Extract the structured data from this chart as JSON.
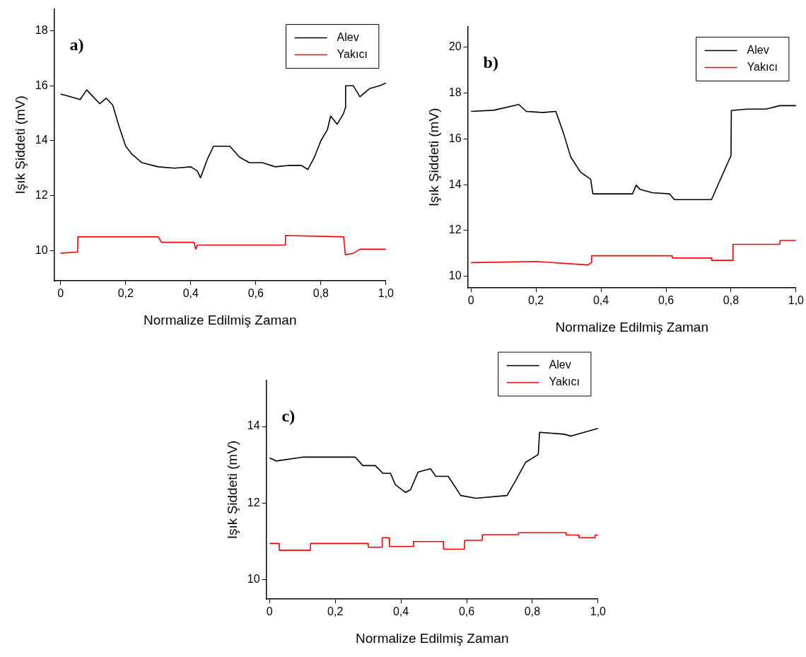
{
  "chart_data": [
    {
      "type": "line",
      "xlabel": "Normalize Edilmiş Zaman",
      "ylabel": "Işık Şiddeti (mV)",
      "annotations": [
        "a)"
      ],
      "legend": "top right",
      "xlim": [
        -0.02,
        1.0
      ],
      "xticks": [
        {
          "value": 0,
          "label": "0"
        },
        {
          "value": 0.2,
          "label": "0,2"
        },
        {
          "value": 0.4,
          "label": "0,4"
        },
        {
          "value": 0.6,
          "label": "0,6"
        },
        {
          "value": 0.8,
          "label": "0,8"
        },
        {
          "value": 1.0,
          "label": "1,0"
        }
      ],
      "ylim": [
        8.9,
        18.8
      ],
      "yticks": [
        10,
        12,
        14,
        16,
        18
      ],
      "series": [
        {
          "name": "Alev",
          "color": "#000000",
          "x": [
            0,
            0.03,
            0.06,
            0.08,
            0.1,
            0.12,
            0.14,
            0.16,
            0.18,
            0.2,
            0.22,
            0.25,
            0.3,
            0.35,
            0.4,
            0.42,
            0.43,
            0.45,
            0.47,
            0.5,
            0.52,
            0.55,
            0.58,
            0.62,
            0.66,
            0.7,
            0.74,
            0.76,
            0.78,
            0.8,
            0.82,
            0.83,
            0.85,
            0.87,
            0.875,
            0.876,
            0.9,
            0.92,
            0.95,
            0.98,
            1.0
          ],
          "values": [
            15.7,
            15.6,
            15.5,
            15.85,
            15.6,
            15.35,
            15.55,
            15.3,
            14.5,
            13.8,
            13.5,
            13.2,
            13.05,
            13.0,
            13.05,
            12.9,
            12.65,
            13.3,
            13.8,
            13.8,
            13.8,
            13.4,
            13.2,
            13.2,
            13.05,
            13.1,
            13.1,
            12.95,
            13.4,
            14.0,
            14.4,
            14.9,
            14.6,
            15.0,
            15.2,
            16.0,
            16.0,
            15.6,
            15.9,
            16.0,
            16.1
          ]
        },
        {
          "name": "Yakıcı",
          "color": "#ff0000",
          "x": [
            0,
            0.052,
            0.053,
            0.3,
            0.31,
            0.41,
            0.415,
            0.42,
            0.69,
            0.691,
            0.87,
            0.875,
            0.9,
            0.92,
            1.0
          ],
          "values": [
            9.9,
            9.95,
            10.5,
            10.5,
            10.3,
            10.3,
            10.05,
            10.2,
            10.2,
            10.55,
            10.5,
            9.85,
            9.9,
            10.05,
            10.05
          ]
        }
      ]
    },
    {
      "type": "line",
      "xlabel": "Normalize Edilmiş Zaman",
      "ylabel": "Işık Şiddeti (mV)",
      "annotations": [
        "b)"
      ],
      "legend": "top right",
      "xlim": [
        -0.01,
        1.0
      ],
      "xticks": [
        0,
        {
          "value": 0.2,
          "label": "0,2"
        },
        {
          "value": 0.4,
          "label": "0,4"
        },
        {
          "value": 0.6,
          "label": "0,6"
        },
        {
          "value": 0.8,
          "label": "0,8"
        },
        {
          "value": 1.0,
          "label": "1,0"
        }
      ],
      "ylim": [
        9.5,
        20.9
      ],
      "yticks": [
        10,
        12,
        14,
        16,
        18,
        20
      ],
      "series": [
        {
          "name": "Alev",
          "color": "#000000",
          "x": [
            0,
            0.07,
            0.147,
            0.17,
            0.22,
            0.261,
            0.284,
            0.307,
            0.337,
            0.368,
            0.375,
            0.45,
            0.497,
            0.508,
            0.52,
            0.558,
            0.611,
            0.626,
            0.74,
            0.771,
            0.8,
            0.801,
            0.85,
            0.908,
            0.95,
            1.0
          ],
          "values": [
            17.2,
            17.25,
            17.5,
            17.2,
            17.15,
            17.2,
            16.27,
            15.2,
            14.55,
            14.24,
            13.6,
            13.6,
            13.6,
            13.98,
            13.8,
            13.65,
            13.6,
            13.35,
            13.35,
            14.35,
            15.27,
            17.24,
            17.3,
            17.3,
            17.45,
            17.45
          ]
        },
        {
          "name": "Yakıcı",
          "color": "#ff0000",
          "x": [
            0,
            0.2,
            0.36,
            0.37,
            0.371,
            0.619,
            0.62,
            0.74,
            0.741,
            0.805,
            0.806,
            0.95,
            0.951,
            1.0
          ],
          "values": [
            10.6,
            10.65,
            10.5,
            10.6,
            10.9,
            10.9,
            10.8,
            10.8,
            10.7,
            10.7,
            11.4,
            11.4,
            11.57,
            11.57
          ]
        }
      ]
    },
    {
      "type": "line",
      "xlabel": "Normalize Edilmiş Zaman",
      "ylabel": "Işık Şiddeti (mV)",
      "annotations": [
        "c)"
      ],
      "legend": "top right",
      "xlim": [
        -0.01,
        1.0
      ],
      "xticks": [
        0,
        {
          "value": 0.2,
          "label": "0,2"
        },
        {
          "value": 0.4,
          "label": "0,4"
        },
        {
          "value": 0.6,
          "label": "0,6"
        },
        {
          "value": 0.8,
          "label": "0,8"
        },
        {
          "value": 1.0,
          "label": "1,0"
        }
      ],
      "ylim": [
        9.5,
        15.2
      ],
      "yticks": [
        10,
        12,
        14
      ],
      "series": [
        {
          "name": "Alev",
          "color": "#000000",
          "x": [
            0,
            0.02,
            0.1,
            0.261,
            0.284,
            0.322,
            0.345,
            0.368,
            0.383,
            0.414,
            0.429,
            0.452,
            0.49,
            0.506,
            0.544,
            0.582,
            0.628,
            0.723,
            0.75,
            0.78,
            0.818,
            0.822,
            0.895,
            0.918,
            1.0
          ],
          "values": [
            13.18,
            13.1,
            13.2,
            13.2,
            12.98,
            12.98,
            12.78,
            12.78,
            12.48,
            12.28,
            12.35,
            12.81,
            12.9,
            12.7,
            12.7,
            12.2,
            12.13,
            12.2,
            12.6,
            13.07,
            13.27,
            13.85,
            13.8,
            13.75,
            13.95
          ]
        },
        {
          "name": "Yakıcı",
          "color": "#ff0000",
          "x": [
            0,
            0.029,
            0.03,
            0.124,
            0.125,
            0.3,
            0.301,
            0.342,
            0.343,
            0.364,
            0.365,
            0.437,
            0.438,
            0.529,
            0.53,
            0.593,
            0.594,
            0.647,
            0.648,
            0.757,
            0.758,
            0.902,
            0.903,
            0.941,
            0.942,
            0.99,
            0.991,
            1.0
          ],
          "values": [
            10.95,
            10.95,
            10.77,
            10.77,
            10.95,
            10.95,
            10.85,
            10.85,
            11.1,
            11.1,
            10.87,
            10.87,
            11.0,
            11.0,
            10.8,
            10.8,
            11.03,
            11.03,
            11.18,
            11.18,
            11.23,
            11.23,
            11.17,
            11.17,
            11.1,
            11.1,
            11.17,
            11.17
          ]
        }
      ]
    }
  ]
}
